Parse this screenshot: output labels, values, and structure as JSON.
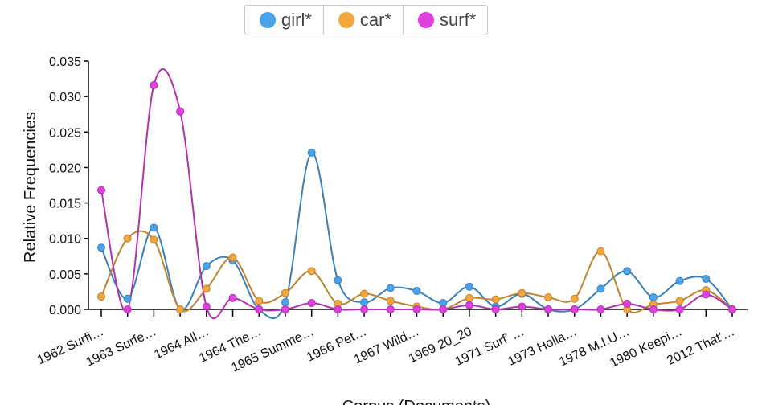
{
  "chart_data": {
    "type": "line",
    "xlabel": "Corpus (Documents)",
    "ylabel": "Relative Frequencies",
    "ylim": [
      0,
      0.035
    ],
    "y_ticks": [
      "0.000",
      "0.005",
      "0.010",
      "0.015",
      "0.020",
      "0.025",
      "0.030",
      "0.035"
    ],
    "x_tick_labels": [
      "1962 Surfi…",
      "1963 Surfe…",
      "1964 All…",
      "1964 The…",
      "1965 Summe…",
      "1966 Pet…",
      "1967 Wild…",
      "1969 20_20",
      "1971 Surf' …",
      "1973 Holla…",
      "1978 M.I.U…",
      "1980 Keepi…",
      "2012 That'…"
    ],
    "x_points": 25,
    "legend_position": "top-center",
    "series": [
      {
        "name": "girl*",
        "color": "#4aa3ea",
        "values": [
          0.0087,
          0.0015,
          0.0115,
          0.0,
          0.0061,
          0.0069,
          0.0,
          0.001,
          0.0221,
          0.0041,
          0.001,
          0.003,
          0.0026,
          0.0009,
          0.0032,
          0.0004,
          0.0022,
          0.0,
          0.0,
          0.0029,
          0.0054,
          0.0017,
          0.004,
          0.0043,
          0.0
        ]
      },
      {
        "name": "car*",
        "color": "#f2a83c",
        "values": [
          0.0018,
          0.01,
          0.0098,
          0.0,
          0.0029,
          0.0073,
          0.0012,
          0.0023,
          0.0054,
          0.0008,
          0.0022,
          0.0012,
          0.0004,
          0.0,
          0.0016,
          0.0014,
          0.0023,
          0.0017,
          0.0015,
          0.0082,
          0.0,
          0.0007,
          0.0012,
          0.0027,
          0.0
        ]
      },
      {
        "name": "surf*",
        "color": "#e040e0",
        "values": [
          0.0168,
          0.0,
          0.0316,
          0.0279,
          0.0004,
          0.0016,
          0.0,
          0.0,
          0.0009,
          0.0,
          0.0,
          0.0,
          0.0,
          0.0,
          0.0006,
          0.0,
          0.0004,
          0.0,
          0.0,
          0.0,
          0.0008,
          0.0,
          0.0,
          0.0021,
          0.0
        ]
      }
    ]
  }
}
